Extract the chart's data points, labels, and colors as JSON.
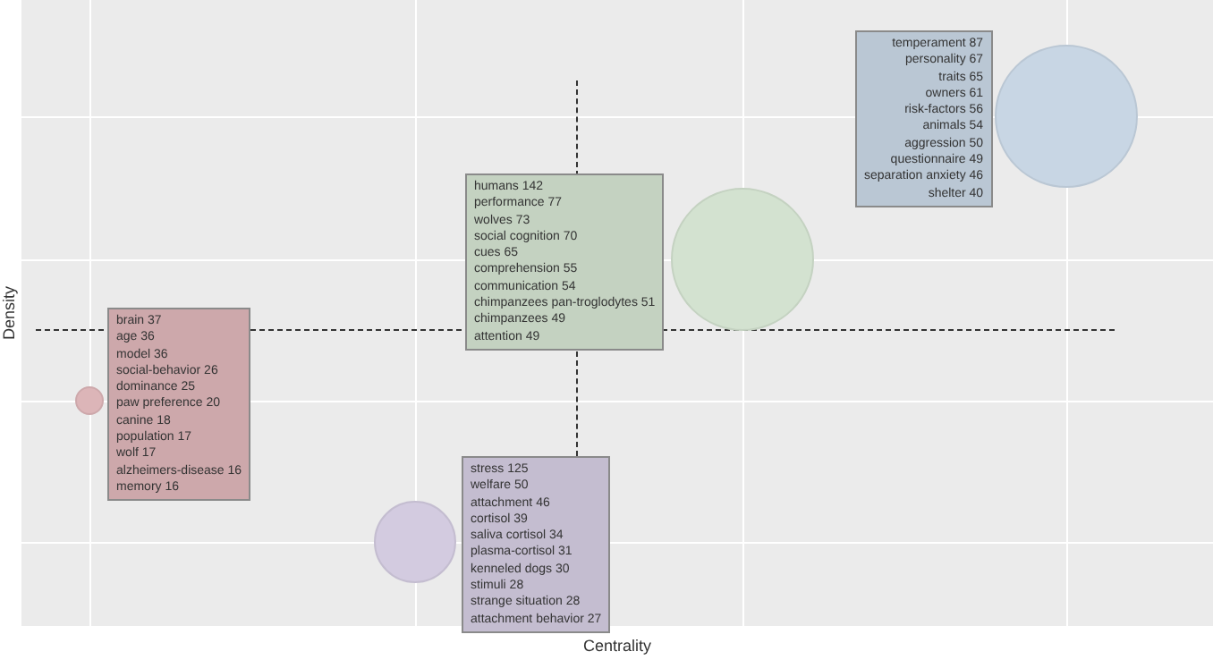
{
  "chart_data": {
    "type": "other",
    "xlabel": "Centrality",
    "ylabel": "Density",
    "data_labels": true,
    "categories": [
      "brain",
      "age",
      "model",
      "social-behavior",
      "dominance",
      "paw preference",
      "canine",
      "population",
      "wolf",
      "alzheimers-disease",
      "memory",
      "stress",
      "welfare",
      "attachment",
      "cortisol",
      "saliva cortisol",
      "plasma-cortisol",
      "kenneled dogs",
      "stimuli",
      "strange situation",
      "attachment behavior",
      "humans",
      "performance",
      "wolves",
      "social cognition",
      "cues",
      "comprehension",
      "communication",
      "chimpanzees pan-troglodytes",
      "chimpanzees",
      "attention",
      "temperament",
      "personality",
      "traits",
      "owners",
      "risk-factors",
      "animals",
      "aggression",
      "questionnaire",
      "separation anxiety",
      "shelter"
    ],
    "values": [
      37,
      36,
      36,
      26,
      25,
      20,
      18,
      17,
      17,
      16,
      16,
      125,
      50,
      46,
      39,
      34,
      31,
      30,
      28,
      28,
      27,
      142,
      77,
      73,
      70,
      65,
      55,
      54,
      51,
      49,
      49,
      87,
      67,
      65,
      61,
      56,
      54,
      50,
      49,
      46,
      40
    ],
    "colors": [
      "#cda8ab",
      "#cda8ab",
      "#cda8ab",
      "#cda8ab",
      "#cda8ab",
      "#cda8ab",
      "#cda8ab",
      "#cda8ab",
      "#cda8ab",
      "#cda8ab",
      "#cda8ab",
      "#c4bdd0",
      "#c4bdd0",
      "#c4bdd0",
      "#c4bdd0",
      "#c4bdd0",
      "#c4bdd0",
      "#c4bdd0",
      "#c4bdd0",
      "#c4bdd0",
      "#c4bdd0",
      "#c4d2c1",
      "#c4d2c1",
      "#c4d2c1",
      "#c4d2c1",
      "#c4d2c1",
      "#c4d2c1",
      "#c4d2c1",
      "#c4d2c1",
      "#c4d2c1",
      "#c4d2c1",
      "#bac7d4",
      "#bac7d4",
      "#bac7d4",
      "#bac7d4",
      "#bac7d4",
      "#bac7d4",
      "#bac7d4",
      "#bac7d4",
      "#bac7d4",
      "#bac7d4"
    ]
  }
}
